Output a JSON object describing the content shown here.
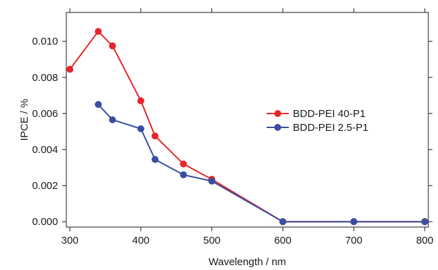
{
  "chart_data": {
    "type": "line",
    "xlabel": "Wavelength / nm",
    "ylabel": "IPCE / %",
    "xlim": [
      295,
      805
    ],
    "ylim": [
      -0.0003,
      0.0116
    ],
    "xticks": [
      "300",
      "400",
      "500",
      "600",
      "700",
      "800"
    ],
    "xtick_values": [
      300,
      400,
      500,
      600,
      700,
      800
    ],
    "yticks": [
      "0.000",
      "0.002",
      "0.004",
      "0.006",
      "0.008",
      "0.010"
    ],
    "ytick_values": [
      0,
      0.002,
      0.004,
      0.006,
      0.008,
      0.01
    ],
    "grid": false,
    "legend_position": "center-right",
    "series": [
      {
        "name": "BDD-PEI 40-P1",
        "color": "#e8262b",
        "x": [
          300,
          340,
          360,
          400,
          420,
          460,
          500,
          600,
          700,
          800
        ],
        "y": [
          0.00845,
          0.01055,
          0.00975,
          0.0067,
          0.00475,
          0.0032,
          0.00235,
          0.0,
          0.0,
          0.0
        ]
      },
      {
        "name": "BDD-PEI 2.5-P1",
        "color": "#3a4ea0",
        "x": [
          340,
          360,
          400,
          420,
          460,
          500,
          600,
          700,
          800
        ],
        "y": [
          0.0065,
          0.00565,
          0.00515,
          0.00345,
          0.0026,
          0.00225,
          0.0,
          0.0,
          0.0
        ]
      }
    ]
  }
}
